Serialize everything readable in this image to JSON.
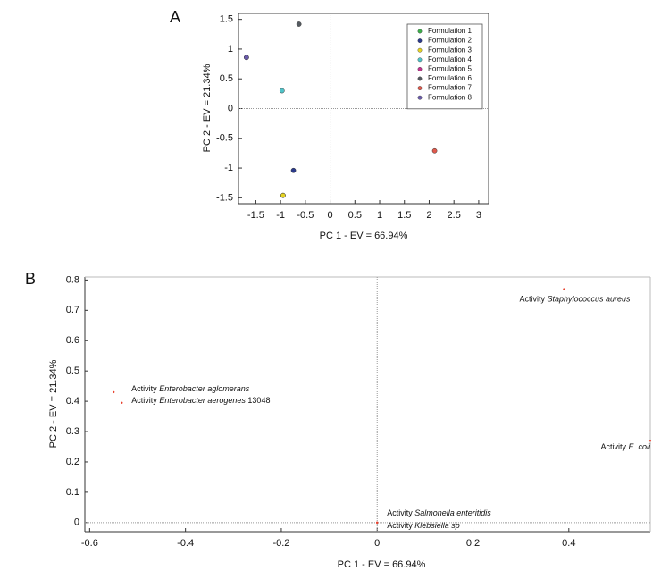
{
  "chart_data": [
    {
      "type": "scatter",
      "panel_label": "A",
      "xlabel": "PC 1 - EV = 66.94%",
      "ylabel": "PC 2 - EV = 21.34%",
      "xlim": [
        -1.85,
        3.2
      ],
      "ylim": [
        -1.6,
        1.6
      ],
      "xticks": [
        -1.5,
        -1,
        -0.5,
        0,
        0.5,
        1,
        1.5,
        2,
        2.5,
        3
      ],
      "yticks": [
        -1.5,
        -1,
        -0.5,
        0,
        0.5,
        1,
        1.5
      ],
      "zero_lines": true,
      "legend": "upper right",
      "series": [
        {
          "name": "Formulation 1",
          "color": "#3cb04a",
          "x": [
            -0.95
          ],
          "values": [
            -1.46
          ]
        },
        {
          "name": "Formulation 2",
          "color": "#2b3a8c",
          "x": [
            -0.74
          ],
          "values": [
            -1.04
          ]
        },
        {
          "name": "Formulation 3",
          "color": "#e5d322",
          "x": [
            -0.95
          ],
          "values": [
            -1.46
          ]
        },
        {
          "name": "Formulation 4",
          "color": "#4fc3c8",
          "x": [
            -0.97
          ],
          "values": [
            0.3
          ]
        },
        {
          "name": "Formulation 5",
          "color": "#c2338f",
          "x": [
            -1.69
          ],
          "values": [
            0.86
          ]
        },
        {
          "name": "Formulation 6",
          "color": "#555a60",
          "x": [
            -0.63
          ],
          "values": [
            1.42
          ]
        },
        {
          "name": "Formulation 7",
          "color": "#e05a4d",
          "x": [
            2.11
          ],
          "values": [
            -0.71
          ]
        },
        {
          "name": "Formulation 8",
          "color": "#6a5bab",
          "x": [
            -1.69
          ],
          "values": [
            0.86
          ]
        }
      ]
    },
    {
      "type": "scatter",
      "panel_label": "B",
      "xlabel": "PC 1 - EV = 66.94%",
      "ylabel": "PC 2 - EV = 21.34%",
      "xlim": [
        -0.61,
        0.57
      ],
      "ylim": [
        -0.03,
        0.81
      ],
      "xticks": [
        -0.6,
        -0.4,
        -0.2,
        0,
        0.2,
        0.4
      ],
      "yticks": [
        0,
        0.1,
        0.2,
        0.3,
        0.4,
        0.5,
        0.6,
        0.7,
        0.8
      ],
      "zero_lines": true,
      "color": "#e8412e",
      "x": [
        0.39,
        -0.55,
        -0.533,
        0.57,
        0,
        0
      ],
      "values": [
        0.77,
        0.43,
        0.395,
        0.27,
        0,
        0
      ],
      "point_labels": [
        {
          "prefix": "Activity",
          "name": "Staphylococcus aureus"
        },
        {
          "prefix": "Activity",
          "name": "Enterobacter aglomerans"
        },
        {
          "prefix": "Activity",
          "name": "Enterobacter aerogenes",
          "suffix": "13048"
        },
        {
          "prefix": "Activity",
          "name": "E. coli"
        },
        {
          "prefix": "Activity",
          "name": "Salmonella enteritidis"
        },
        {
          "prefix": "Activity",
          "name": "Klebsiella sp"
        }
      ]
    }
  ]
}
